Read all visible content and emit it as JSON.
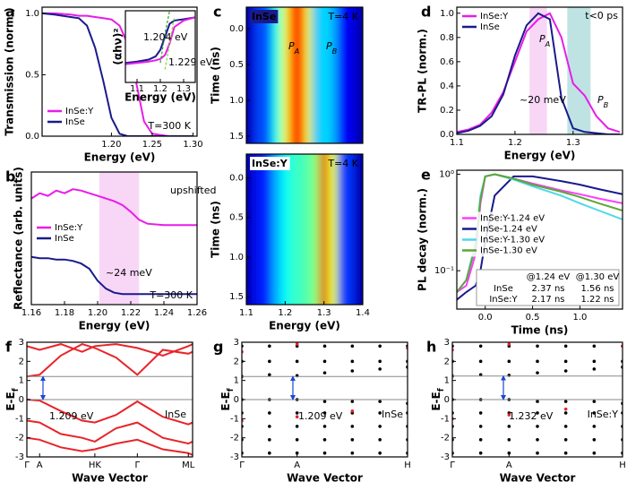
{
  "chart_data": [
    {
      "type": "line",
      "label": "a",
      "xlabel": "Energy (eV)",
      "ylabel": "Transmission (norm.)",
      "xlim": [
        1.115,
        1.305
      ],
      "xticks": [
        {
          "value": 1.2,
          "label": "1.20"
        },
        1.25,
        {
          "value": 1.3,
          "label": "1.30"
        }
      ],
      "ylim": [
        0,
        1.05
      ],
      "yticks": [
        {
          "value": 0,
          "label": "0.0"
        },
        0.5,
        {
          "value": 1,
          "label": "1.0"
        }
      ],
      "legend": "lower left",
      "x": [
        1.115,
        1.13,
        1.15,
        1.16,
        1.17,
        1.18,
        1.19,
        1.2,
        1.21,
        1.22,
        1.23,
        1.24,
        1.25,
        1.27,
        1.3
      ],
      "series": [
        {
          "name": "InSe:Y",
          "color": "#e81ce8",
          "values": [
            1.0,
            1.0,
            0.99,
            0.98,
            0.98,
            0.97,
            0.96,
            0.95,
            0.9,
            0.75,
            0.45,
            0.12,
            0.02,
            0,
            0
          ]
        },
        {
          "name": "InSe",
          "color": "#1a1a8c",
          "values": [
            1.0,
            0.99,
            0.97,
            0.96,
            0.9,
            0.72,
            0.45,
            0.15,
            0.02,
            0,
            0,
            0,
            0,
            0,
            0
          ]
        }
      ],
      "annotations": [
        "T=300 K"
      ]
    },
    {
      "type": "line",
      "xlabel": "Energy (eV)",
      "ylabel": "(αhν)²",
      "xlim": [
        1.05,
        1.35
      ],
      "xticks": [
        1.1,
        1.2,
        1.3
      ],
      "ylim": [
        0,
        1.1
      ],
      "x": [
        1.05,
        1.1,
        1.15,
        1.18,
        1.2,
        1.22,
        1.24,
        1.26,
        1.3,
        1.35
      ],
      "series": [
        {
          "color": "#1a1a8c",
          "values": [
            0.3,
            0.32,
            0.35,
            0.4,
            0.5,
            0.7,
            0.9,
            0.95,
            0.97,
            1.0
          ]
        },
        {
          "color": "#e81ce8",
          "values": [
            0.28,
            0.3,
            0.32,
            0.34,
            0.36,
            0.42,
            0.6,
            0.85,
            0.95,
            1.0
          ]
        },
        {
          "color": "#2ca02c",
          "dash": true,
          "values": [
            null,
            null,
            null,
            null,
            0.3,
            0.75,
            1.1,
            null,
            null,
            null
          ]
        },
        {
          "color": "#7ddc3c",
          "dash": true,
          "values": [
            null,
            null,
            null,
            null,
            null,
            0.2,
            0.6,
            1.0,
            null,
            null
          ]
        }
      ],
      "annotations": [
        "1.204 eV",
        "1.229 eV"
      ]
    },
    {
      "type": "line",
      "label": "b",
      "xlabel": "Energy (eV)",
      "ylabel": "Reflectance (arb. units)",
      "xlim": [
        1.16,
        1.26
      ],
      "xticks": [
        1.16,
        1.18,
        {
          "value": 1.2,
          "label": "1.20"
        },
        1.22,
        1.24,
        1.26
      ],
      "ylim": [
        0,
        1
      ],
      "legend": "center left",
      "shade": [
        {
          "range": [
            1.201,
            1.225
          ],
          "color": "#f8d6f6"
        }
      ],
      "x": [
        1.16,
        1.165,
        1.17,
        1.175,
        1.18,
        1.185,
        1.19,
        1.195,
        1.2,
        1.205,
        1.21,
        1.215,
        1.22,
        1.225,
        1.23,
        1.24,
        1.25,
        1.26
      ],
      "series": [
        {
          "name": "InSe:Y",
          "color": "#e81ce8",
          "values": [
            0.8,
            0.84,
            0.82,
            0.86,
            0.84,
            0.87,
            0.86,
            0.84,
            0.82,
            0.8,
            0.78,
            0.75,
            0.7,
            0.64,
            0.61,
            0.6,
            0.6,
            0.6
          ]
        },
        {
          "name": "InSe",
          "color": "#1a1a8c",
          "values": [
            0.36,
            0.35,
            0.35,
            0.34,
            0.34,
            0.33,
            0.31,
            0.27,
            0.18,
            0.12,
            0.09,
            0.08,
            0.08,
            0.08,
            0.08,
            0.08,
            0.08,
            0.08
          ]
        }
      ],
      "annotations": [
        "upshifted",
        "~24 meV",
        "T=300 K"
      ]
    },
    {
      "type": "heatmap",
      "label": "c",
      "ylabel": "Time (ns)",
      "xlim": [
        1.1,
        1.4
      ],
      "ylim": [
        1.6,
        -0.3
      ],
      "yticks": [
        {
          "value": 0,
          "label": "0.0"
        },
        0.5,
        {
          "value": 1,
          "label": "1.0"
        },
        1.5
      ],
      "x": [
        1.1,
        1.15,
        1.18,
        1.2,
        1.22,
        1.24,
        1.26,
        1.28,
        1.3,
        1.32,
        1.35,
        1.4
      ],
      "values": [
        0.08,
        0.2,
        0.4,
        0.6,
        0.8,
        0.85,
        0.6,
        0.3,
        0.35,
        0.3,
        0.12,
        0.06
      ],
      "annotations": [
        "InSe",
        "T=4 K",
        {
          "text": "P",
          "sub": "A"
        },
        {
          "text": "P",
          "sub": "B"
        }
      ]
    },
    {
      "type": "heatmap",
      "xlabel": "Energy (eV)",
      "ylabel": "Time (ns)",
      "xlim": [
        1.1,
        1.4
      ],
      "xticks": [
        1.1,
        1.2,
        1.3,
        1.4
      ],
      "ylim": [
        1.6,
        -0.3
      ],
      "yticks": [
        {
          "value": 0,
          "label": "0.0"
        },
        0.5,
        {
          "value": 1,
          "label": "1.0"
        },
        1.5
      ],
      "x": [
        1.1,
        1.15,
        1.18,
        1.2,
        1.22,
        1.24,
        1.26,
        1.28,
        1.3,
        1.32,
        1.35,
        1.4
      ],
      "values": [
        0.08,
        0.15,
        0.3,
        0.38,
        0.42,
        0.44,
        0.46,
        0.52,
        0.9,
        0.6,
        0.18,
        0.06
      ],
      "annotations": [
        "InSe:Y",
        "T=4 K"
      ]
    },
    {
      "type": "line",
      "label": "d",
      "xlabel": "Energy (eV)",
      "ylabel": "TR-PL (norm.)",
      "xlim": [
        1.1,
        1.385
      ],
      "xticks": [
        1.1,
        1.2,
        1.3
      ],
      "ylim": [
        0,
        1.05
      ],
      "yticks": [
        {
          "value": 0,
          "label": "0.0"
        },
        0.2,
        0.4,
        0.6,
        0.8,
        {
          "value": 1,
          "label": "1.0"
        }
      ],
      "legend": "upper left",
      "shade": [
        {
          "range": [
            1.225,
            1.255
          ],
          "color": "#f8d6f6"
        },
        {
          "range": [
            1.29,
            1.33
          ],
          "color": "#bfe3e3"
        }
      ],
      "x": [
        1.1,
        1.12,
        1.14,
        1.16,
        1.18,
        1.2,
        1.22,
        1.24,
        1.26,
        1.28,
        1.3,
        1.32,
        1.34,
        1.36,
        1.38
      ],
      "series": [
        {
          "name": "InSe:Y",
          "color": "#e81ce8",
          "values": [
            0.02,
            0.04,
            0.08,
            0.18,
            0.35,
            0.6,
            0.85,
            0.95,
            1.0,
            0.8,
            0.42,
            0.32,
            0.15,
            0.05,
            0.02
          ]
        },
        {
          "name": "InSe",
          "color": "#1a1a8c",
          "values": [
            0.01,
            0.03,
            0.07,
            0.15,
            0.33,
            0.65,
            0.9,
            1.0,
            0.95,
            0.3,
            0.05,
            0.02,
            0.01,
            0,
            0
          ]
        }
      ],
      "annotations": [
        "t<0 ps",
        {
          "text": "P",
          "sub": "A"
        },
        {
          "text": "P",
          "sub": "B"
        },
        "~20 meV"
      ]
    },
    {
      "type": "line",
      "label": "e",
      "xlabel": "Time (ns)",
      "ylabel": "PL decay (norm.)",
      "log": true,
      "xlim": [
        -0.3,
        1.45
      ],
      "xticks": [
        {
          "value": 0,
          "label": "0.0"
        },
        0.5,
        {
          "value": 1,
          "label": "1.0"
        }
      ],
      "ylim": [
        0.04,
        1.1
      ],
      "yticks": [
        {
          "value": 0.1,
          "label": "10⁻¹"
        },
        {
          "value": 1,
          "label": "10⁰"
        }
      ],
      "legend": "center left",
      "x": [
        -0.3,
        -0.2,
        -0.1,
        -0.05,
        0,
        0.1,
        0.3,
        0.5,
        0.8,
        1.0,
        1.2,
        1.45
      ],
      "series": [
        {
          "name": "InSe:Y-1.24 eV",
          "color": "#ff3cff",
          "values": [
            0.06,
            0.07,
            0.15,
            0.5,
            0.95,
            1.0,
            0.9,
            0.8,
            0.68,
            0.62,
            0.56,
            0.5
          ]
        },
        {
          "name": "InSe-1.24 eV",
          "color": "#1a1a8c",
          "values": [
            0.05,
            0.06,
            0.07,
            0.1,
            0.2,
            0.6,
            0.95,
            0.95,
            0.85,
            0.78,
            0.7,
            0.62
          ]
        },
        {
          "name": "InSe:Y-1.30 eV",
          "color": "#4fd8e8",
          "values": [
            0.06,
            0.08,
            0.2,
            0.6,
            0.95,
            1.0,
            0.88,
            0.75,
            0.6,
            0.5,
            0.42,
            0.34
          ]
        },
        {
          "name": "InSe-1.30 eV",
          "color": "#5aa832",
          "values": [
            0.06,
            0.08,
            0.18,
            0.55,
            0.95,
            1.0,
            0.9,
            0.78,
            0.66,
            0.58,
            0.5,
            0.42
          ]
        }
      ],
      "table": {
        "header": [
          "@1.24 eV",
          "@1.30 eV"
        ],
        "rows": [
          {
            "name": "InSe",
            "cells": [
              "2.37 ns",
              "1.56 ns"
            ]
          },
          {
            "name": "InSe:Y",
            "cells": [
              "2.17 ns",
              "1.22 ns"
            ]
          }
        ]
      }
    },
    {
      "type": "line",
      "label": "f",
      "xlabel": "Wave Vector",
      "ylabel": {
        "text": "E-E",
        "sub": "f"
      },
      "xlim": [
        0,
        3.9
      ],
      "xticks": [
        {
          "value": 0,
          "label": "Γ"
        },
        {
          "value": 0.3,
          "label": "A"
        },
        {
          "value": 1.6,
          "label": "HK"
        },
        {
          "value": 2.6,
          "label": "Γ"
        },
        {
          "value": 3.8,
          "label": "ML"
        }
      ],
      "ylim": [
        -3,
        3
      ],
      "yticks": [
        -3,
        -2,
        -1,
        0,
        1,
        2,
        3
      ],
      "x": [
        0,
        0.3,
        0.8,
        1.3,
        1.6,
        2.1,
        2.6,
        3.2,
        3.8,
        3.9
      ],
      "series": [
        {
          "color": "#e8242a",
          "values": [
            1.209,
            1.3,
            2.3,
            2.9,
            2.7,
            2.2,
            1.3,
            2.6,
            2.4,
            2.5
          ]
        },
        {
          "color": "#e8242a",
          "values": [
            2.8,
            2.6,
            2.9,
            2.5,
            2.8,
            2.9,
            2.7,
            2.3,
            2.8,
            2.9
          ]
        },
        {
          "color": "#e8242a",
          "values": [
            0,
            -0.05,
            -0.6,
            -1.1,
            -1.2,
            -0.8,
            -0.1,
            -0.9,
            -1.3,
            -1.2
          ]
        },
        {
          "color": "#e8242a",
          "values": [
            -1.1,
            -1.2,
            -1.8,
            -2.0,
            -2.2,
            -1.5,
            -1.2,
            -2.0,
            -2.3,
            -2.2
          ]
        },
        {
          "color": "#e8242a",
          "values": [
            -2.0,
            -2.1,
            -2.5,
            -2.7,
            -2.6,
            -2.3,
            -2.1,
            -2.6,
            -2.8,
            -2.9
          ]
        }
      ],
      "annotations": [
        "1.209 eV",
        "InSe"
      ]
    },
    {
      "type": "scatter",
      "label": "g",
      "xlabel": "Wave Vector",
      "ylabel": {
        "text": "E-E",
        "sub": "f"
      },
      "xlim": [
        0,
        3
      ],
      "xticks": [
        {
          "value": 0,
          "label": "Γ"
        },
        {
          "value": 1,
          "label": "A"
        },
        {
          "value": 3,
          "label": "H"
        }
      ],
      "ylim": [
        -3,
        3
      ],
      "yticks": [
        -3,
        -2,
        -1,
        0,
        1,
        2,
        3
      ],
      "series": [
        {
          "color": "#000000",
          "x": [
            0,
            0,
            0,
            0,
            0,
            0,
            0,
            0,
            0.5,
            0.5,
            0.5,
            0.5,
            0.5,
            0.5,
            0.5,
            0.5,
            1,
            1,
            1,
            1,
            1,
            1,
            1,
            1,
            1.5,
            1.5,
            1.5,
            1.5,
            1.5,
            1.5,
            1.5,
            1.5,
            2,
            2,
            2,
            2,
            2,
            2,
            2,
            2,
            2.5,
            2.5,
            2.5,
            2.5,
            2.5,
            2.5,
            2.5,
            2.5,
            3,
            3,
            3,
            3,
            3,
            3,
            3,
            3
          ],
          "values": [
            -2.8,
            -2.1,
            -1.4,
            -0.7,
            0,
            1.209,
            2.0,
            2.8,
            -2.8,
            -2.1,
            -1.4,
            -0.7,
            0,
            1.3,
            2.0,
            2.8,
            -2.8,
            -2.1,
            -1.4,
            -0.7,
            0,
            1.25,
            2.0,
            2.8,
            -2.8,
            -2.1,
            -1.4,
            -0.7,
            -0.1,
            1.4,
            2.0,
            2.8,
            -2.8,
            -2.1,
            -1.4,
            -0.7,
            -0.1,
            1.5,
            2.0,
            2.8,
            -2.8,
            -2.1,
            -1.4,
            -0.7,
            -0.1,
            1.6,
            2.0,
            2.8,
            -2.8,
            -2.1,
            -1.4,
            -0.7,
            -0.2,
            1.7,
            2.0,
            2.8
          ]
        },
        {
          "color": "#e8242a",
          "x": [
            0,
            0,
            1,
            1,
            2,
            3
          ],
          "values": [
            -1.1,
            2.5,
            -0.9,
            2.9,
            -0.6,
            2.7
          ]
        }
      ],
      "annotations": [
        "1.209 eV",
        "InSe"
      ]
    },
    {
      "type": "scatter",
      "label": "h",
      "xlabel": "Wave Vector",
      "ylabel": {
        "text": "E-E",
        "sub": "f"
      },
      "xlim": [
        0,
        3
      ],
      "xticks": [
        {
          "value": 0,
          "label": "Γ"
        },
        {
          "value": 1,
          "label": "A"
        },
        {
          "value": 3,
          "label": "H"
        }
      ],
      "ylim": [
        -3,
        3
      ],
      "yticks": [
        -3,
        -2,
        -1,
        0,
        1,
        2,
        3
      ],
      "series": [
        {
          "color": "#000000",
          "x": [
            0,
            0,
            0,
            0,
            0,
            0,
            0,
            0,
            0.5,
            0.5,
            0.5,
            0.5,
            0.5,
            0.5,
            0.5,
            0.5,
            1,
            1,
            1,
            1,
            1,
            1,
            1,
            1,
            1.5,
            1.5,
            1.5,
            1.5,
            1.5,
            1.5,
            1.5,
            1.5,
            2,
            2,
            2,
            2,
            2,
            2,
            2,
            2,
            2.5,
            2.5,
            2.5,
            2.5,
            2.5,
            2.5,
            2.5,
            2.5,
            3,
            3,
            3,
            3,
            3,
            3,
            3,
            3
          ],
          "values": [
            -2.8,
            -2.1,
            -1.4,
            -0.7,
            0,
            1.232,
            2.0,
            2.8,
            -2.8,
            -2.1,
            -1.4,
            -0.7,
            0,
            1.3,
            2.0,
            2.8,
            -2.8,
            -2.1,
            -1.4,
            -0.7,
            0,
            1.27,
            2.0,
            2.8,
            -2.8,
            -2.1,
            -1.4,
            -0.7,
            -0.1,
            1.4,
            2.0,
            2.8,
            -2.8,
            -2.1,
            -1.4,
            -0.7,
            -0.1,
            1.5,
            2.0,
            2.8,
            -2.8,
            -2.1,
            -1.4,
            -0.7,
            -0.1,
            1.6,
            2.0,
            2.8,
            -2.8,
            -2.1,
            -1.4,
            -0.7,
            -0.2,
            1.7,
            2.0,
            2.8
          ]
        },
        {
          "color": "#e8242a",
          "x": [
            0,
            0,
            1,
            1,
            2,
            3
          ],
          "values": [
            -1.0,
            2.6,
            -0.8,
            2.9,
            -0.5,
            2.8
          ]
        }
      ],
      "annotations": [
        "1.232 eV",
        "InSe:Y"
      ]
    }
  ]
}
